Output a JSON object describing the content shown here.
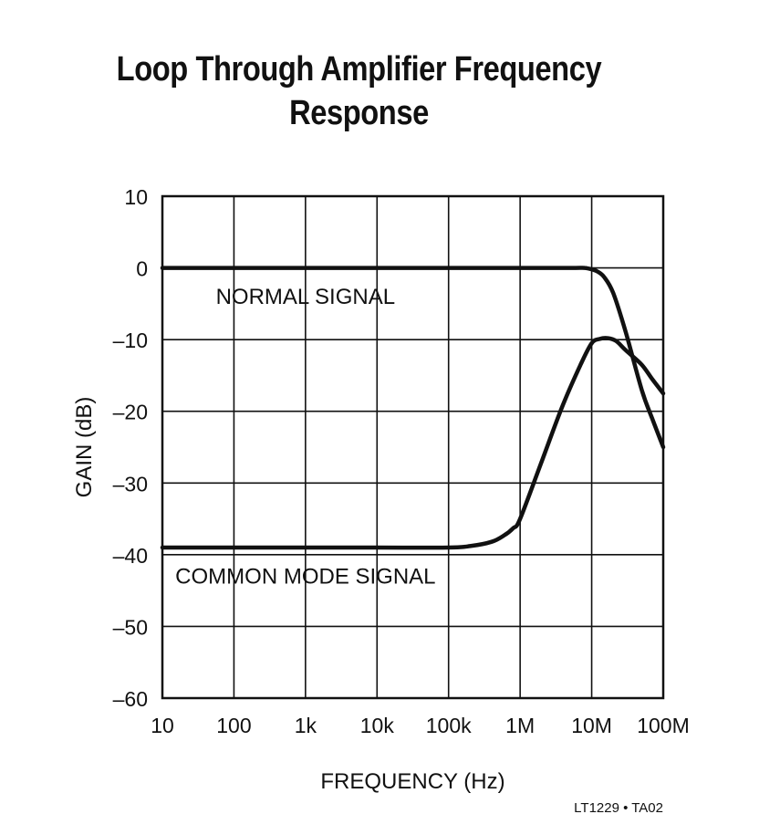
{
  "chart_data": {
    "type": "line",
    "title_lines": [
      "Loop Through Amplifier Frequency",
      "Response"
    ],
    "xlabel": "FREQUENCY (Hz)",
    "ylabel": "GAIN (dB)",
    "x_scale": "log",
    "xlim": [
      10,
      100000000
    ],
    "ylim": [
      -60,
      10
    ],
    "grid": true,
    "x_ticks": [
      {
        "value": 10,
        "label": "10"
      },
      {
        "value": 100,
        "label": "100"
      },
      {
        "value": 1000,
        "label": "1k"
      },
      {
        "value": 10000,
        "label": "10k"
      },
      {
        "value": 100000,
        "label": "100k"
      },
      {
        "value": 1000000,
        "label": "1M"
      },
      {
        "value": 10000000,
        "label": "10M"
      },
      {
        "value": 100000000,
        "label": "100M"
      }
    ],
    "y_ticks": [
      {
        "value": 10,
        "label": "10"
      },
      {
        "value": 0,
        "label": "0"
      },
      {
        "value": -10,
        "label": "–10"
      },
      {
        "value": -20,
        "label": "–20"
      },
      {
        "value": -30,
        "label": "–30"
      },
      {
        "value": -40,
        "label": "–40"
      },
      {
        "value": -50,
        "label": "–50"
      },
      {
        "value": -60,
        "label": "–60"
      }
    ],
    "series": [
      {
        "name": "NORMAL SIGNAL",
        "x": [
          10,
          100,
          1000,
          10000,
          100000,
          1000000,
          3000000,
          6000000,
          8000000,
          10000000,
          12000000,
          15000000,
          20000000,
          30000000,
          50000000,
          70000000,
          100000000
        ],
        "y": [
          0,
          0,
          0,
          0,
          0,
          0,
          0,
          0,
          0,
          -0.2,
          -0.5,
          -1.3,
          -3.5,
          -9,
          -17,
          -21,
          -25
        ]
      },
      {
        "name": "COMMON MODE SIGNAL",
        "x": [
          10,
          100,
          1000,
          10000,
          100000,
          200000,
          400000,
          600000,
          800000,
          1000000,
          2000000,
          4000000,
          7000000,
          10000000,
          13000000,
          17000000,
          22000000,
          30000000,
          50000000,
          70000000,
          100000000
        ],
        "y": [
          -39,
          -39,
          -39,
          -39,
          -39,
          -38.8,
          -38.2,
          -37.3,
          -36.3,
          -35,
          -27,
          -19,
          -13.5,
          -10.5,
          -9.9,
          -9.8,
          -10.2,
          -11.5,
          -13.5,
          -15.5,
          -17.5
        ]
      }
    ],
    "annotations": [
      {
        "text": "NORMAL SIGNAL",
        "x": 1000,
        "y": -4
      },
      {
        "text": "COMMON MODE SIGNAL",
        "x": 1000,
        "y": -43
      }
    ],
    "figure_code": "LT1229 • TA02"
  }
}
